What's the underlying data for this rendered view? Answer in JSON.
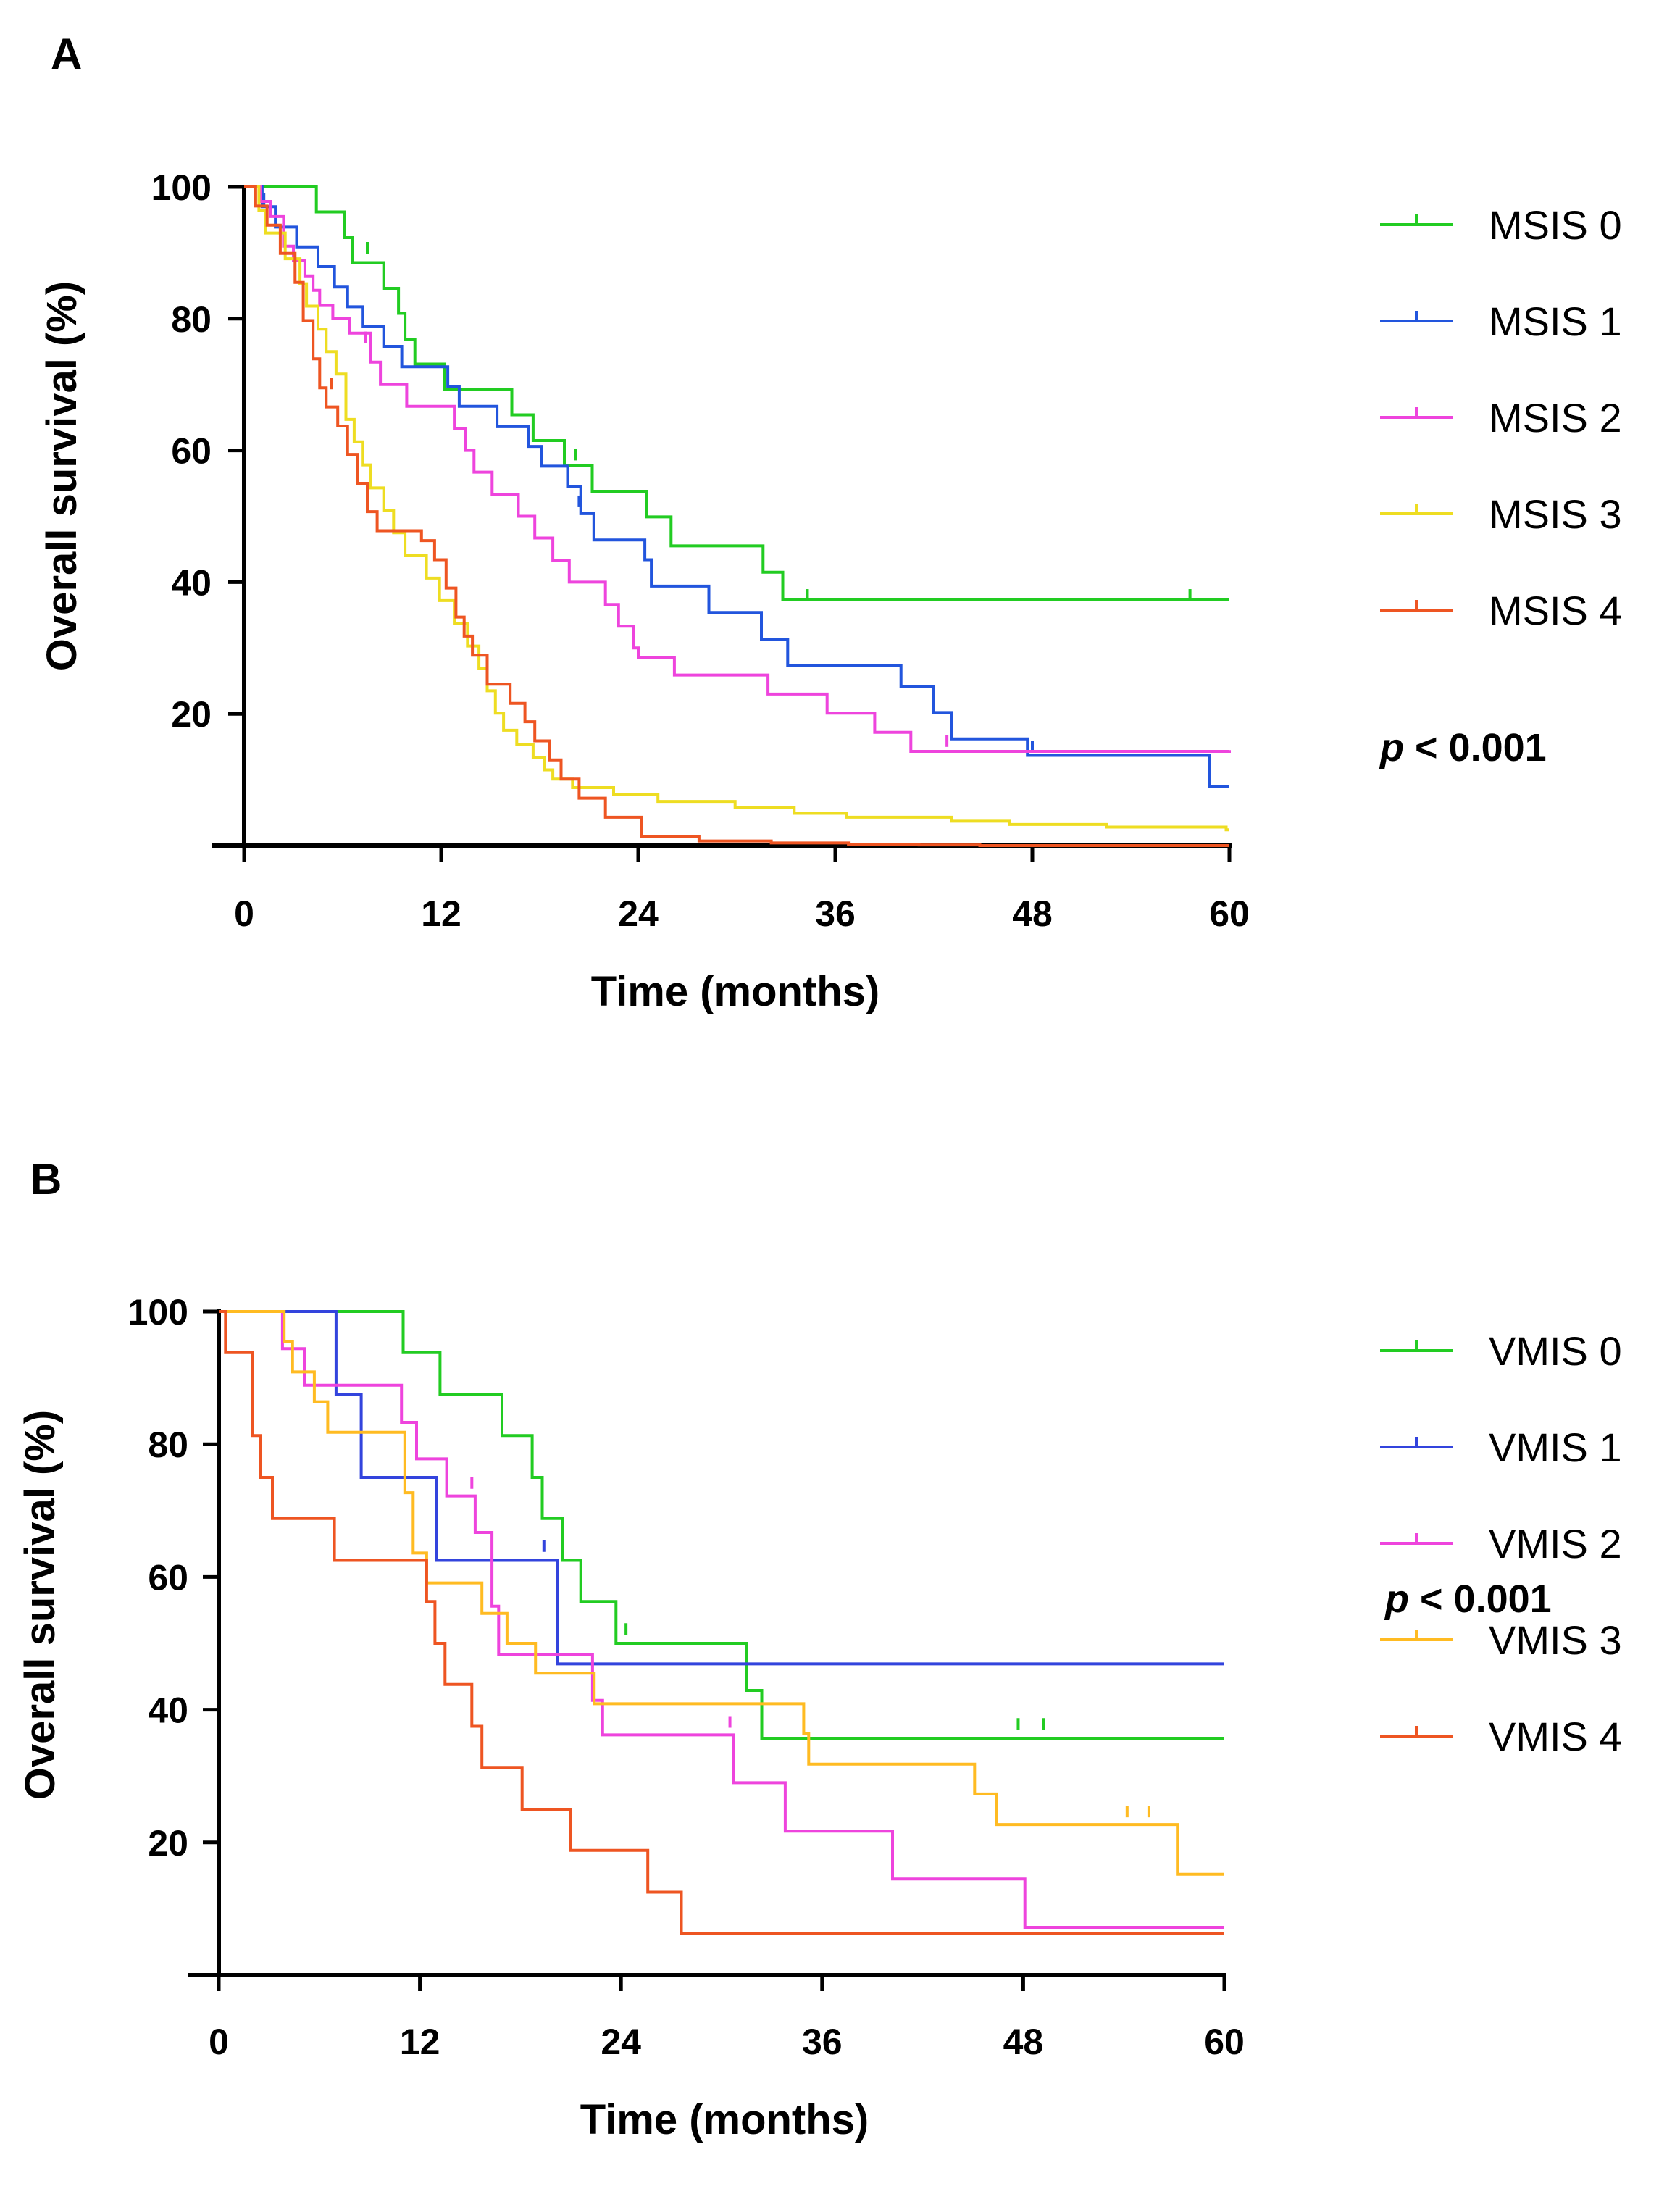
{
  "chart_data": [
    {
      "type": "line",
      "panel": "A",
      "subtype": "kaplan-meier",
      "xlabel": "Time (months)",
      "ylabel": "Overall survival (%)",
      "xlim": [
        0,
        60
      ],
      "ylim": [
        0,
        100
      ],
      "xticks": [
        0,
        12,
        24,
        36,
        48,
        60
      ],
      "yticks": [
        20,
        40,
        60,
        80,
        100
      ],
      "legend_position": "right",
      "annotation": {
        "p_symbol": "p",
        "p_text": " < 0.001"
      },
      "series": [
        {
          "name": "MSIS 0",
          "color": "#22cc22",
          "steps": [
            [
              0,
              100
            ],
            [
              4.4,
              96.2
            ],
            [
              6.1,
              92.3
            ],
            [
              6.6,
              88.5
            ],
            [
              8.5,
              84.6
            ],
            [
              9.4,
              80.8
            ],
            [
              9.8,
              76.9
            ],
            [
              10.4,
              73.1
            ],
            [
              12.2,
              69.2
            ],
            [
              16.3,
              65.4
            ],
            [
              17.6,
              61.5
            ],
            [
              19.5,
              57.7
            ],
            [
              21.2,
              53.8
            ],
            [
              24.5,
              49.9
            ],
            [
              26,
              45.5
            ],
            [
              31.6,
              41.5
            ],
            [
              32.8,
              37.4
            ],
            [
              60,
              37.4
            ]
          ],
          "censored": [
            [
              7.5,
              90.1
            ],
            [
              20.2,
              58.7
            ],
            [
              34.3,
              37.4
            ],
            [
              57.6,
              37.4
            ]
          ]
        },
        {
          "name": "MSIS 1",
          "color": "#2255dd",
          "steps": [
            [
              0,
              100
            ],
            [
              1.1,
              97
            ],
            [
              1.9,
              93.9
            ],
            [
              3.2,
              90.9
            ],
            [
              4.5,
              87.9
            ],
            [
              5.5,
              84.8
            ],
            [
              6.3,
              81.8
            ],
            [
              7.2,
              78.8
            ],
            [
              8.5,
              75.8
            ],
            [
              9.6,
              72.7
            ],
            [
              12.4,
              69.7
            ],
            [
              13.1,
              66.7
            ],
            [
              15.4,
              63.6
            ],
            [
              17.3,
              60.6
            ],
            [
              18.1,
              57.6
            ],
            [
              19.7,
              54.5
            ],
            [
              20.5,
              50.4
            ],
            [
              21.3,
              46.4
            ],
            [
              24.4,
              43.4
            ],
            [
              24.8,
              39.4
            ],
            [
              28.3,
              35.4
            ],
            [
              31.5,
              31.3
            ],
            [
              33.1,
              27.3
            ],
            [
              40,
              24.2
            ],
            [
              42,
              20.2
            ],
            [
              43.1,
              16.2
            ],
            [
              47.7,
              13.7
            ],
            [
              58.8,
              9
            ],
            [
              60,
              9
            ]
          ],
          "censored": [
            [
              1.2,
              97.5
            ],
            [
              20.4,
              51.6
            ],
            [
              48,
              14.3
            ]
          ]
        },
        {
          "name": "MSIS 2",
          "color": "#ee44dd",
          "steps": [
            [
              0,
              100
            ],
            [
              1,
              97.8
            ],
            [
              1.6,
              95.5
            ],
            [
              2.4,
              91
            ],
            [
              3,
              88.8
            ],
            [
              3.7,
              86.5
            ],
            [
              4.2,
              84.3
            ],
            [
              4.6,
              82
            ],
            [
              5.4,
              80
            ],
            [
              6.4,
              77.8
            ],
            [
              7.7,
              73.4
            ],
            [
              8.3,
              70
            ],
            [
              9.9,
              66.7
            ],
            [
              12.8,
              63.3
            ],
            [
              13.5,
              60
            ],
            [
              14,
              56.7
            ],
            [
              15.1,
              53.3
            ],
            [
              16.7,
              50
            ],
            [
              17.7,
              46.7
            ],
            [
              18.8,
              43.3
            ],
            [
              19.8,
              40
            ],
            [
              22,
              36.6
            ],
            [
              22.8,
              33.3
            ],
            [
              23.7,
              30
            ],
            [
              24,
              28.5
            ],
            [
              26.2,
              25.9
            ],
            [
              31.9,
              23
            ],
            [
              35.5,
              20.1
            ],
            [
              38.4,
              17.2
            ],
            [
              40.6,
              14.3
            ],
            [
              60,
              14.5
            ]
          ],
          "censored": [
            [
              7.4,
              76.5
            ],
            [
              42.8,
              15.2
            ]
          ]
        },
        {
          "name": "MSIS 3",
          "color": "#eedd22",
          "steps": [
            [
              0,
              100
            ],
            [
              0.9,
              96.4
            ],
            [
              1.3,
              93
            ],
            [
              2.5,
              89.1
            ],
            [
              3.4,
              85.3
            ],
            [
              3.8,
              81.9
            ],
            [
              4.5,
              78.4
            ],
            [
              5,
              75
            ],
            [
              5.6,
              71.6
            ],
            [
              6.2,
              64.7
            ],
            [
              6.7,
              61.3
            ],
            [
              7.2,
              57.8
            ],
            [
              7.7,
              54.3
            ],
            [
              8.5,
              50.9
            ],
            [
              9.1,
              47.5
            ],
            [
              9.8,
              44
            ],
            [
              11.1,
              40.6
            ],
            [
              11.9,
              37.2
            ],
            [
              12.8,
              33.7
            ],
            [
              13.6,
              30.3
            ],
            [
              14.3,
              26.9
            ],
            [
              14.8,
              23.5
            ],
            [
              15.3,
              20.1
            ],
            [
              15.8,
              17.5
            ],
            [
              16.6,
              15.3
            ],
            [
              17.6,
              13.4
            ],
            [
              18.3,
              11.5
            ],
            [
              18.8,
              10.1
            ],
            [
              20,
              8.8
            ],
            [
              22.5,
              7.7
            ],
            [
              25.2,
              6.7
            ],
            [
              29.9,
              5.8
            ],
            [
              33.5,
              4.9
            ],
            [
              36.7,
              4.3
            ],
            [
              43.1,
              3.7
            ],
            [
              46.6,
              3.2
            ],
            [
              52.5,
              2.8
            ],
            [
              59.8,
              2.4
            ],
            [
              60,
              2.4
            ]
          ],
          "censored": []
        },
        {
          "name": "MSIS 4",
          "color": "#ee5522",
          "steps": [
            [
              0,
              100
            ],
            [
              0.7,
              97.1
            ],
            [
              1.4,
              94.2
            ],
            [
              2.2,
              89.9
            ],
            [
              3.1,
              85.5
            ],
            [
              3.6,
              79.7
            ],
            [
              4.2,
              73.9
            ],
            [
              4.6,
              69.5
            ],
            [
              5,
              66.6
            ],
            [
              5.7,
              63.7
            ],
            [
              6.3,
              59.4
            ],
            [
              6.9,
              55
            ],
            [
              7.5,
              50.7
            ],
            [
              8.1,
              47.8
            ],
            [
              10.8,
              46.3
            ],
            [
              11.6,
              43.4
            ],
            [
              12.3,
              39.1
            ],
            [
              12.9,
              34.7
            ],
            [
              13.4,
              31.8
            ],
            [
              13.9,
              28.9
            ],
            [
              14.8,
              24.5
            ],
            [
              16.2,
              21.6
            ],
            [
              17.1,
              18.8
            ],
            [
              17.7,
              15.9
            ],
            [
              18.6,
              13
            ],
            [
              19.3,
              10.1
            ],
            [
              20.4,
              7.2
            ],
            [
              22,
              4.3
            ],
            [
              24.2,
              1.4
            ],
            [
              27.7,
              0.7
            ],
            [
              32.1,
              0.4
            ],
            [
              36.8,
              0.2
            ],
            [
              41.1,
              0.1
            ],
            [
              44.8,
              0
            ],
            [
              60,
              0
            ]
          ],
          "censored": [
            [
              5.3,
              69.5
            ]
          ]
        }
      ]
    },
    {
      "type": "line",
      "panel": "B",
      "subtype": "kaplan-meier",
      "xlabel": "Time (months)",
      "ylabel": "Overall survival (%)",
      "xlim": [
        0,
        60
      ],
      "ylim": [
        0,
        100
      ],
      "xticks": [
        0,
        12,
        24,
        36,
        48,
        60
      ],
      "yticks": [
        20,
        40,
        60,
        80,
        100
      ],
      "legend_position": "right",
      "annotation": {
        "p_symbol": "p",
        "p_text": " < 0.001"
      },
      "series": [
        {
          "name": "VMIS 0",
          "color": "#22cc22",
          "steps": [
            [
              0,
              100
            ],
            [
              11,
              93.8
            ],
            [
              13.2,
              87.5
            ],
            [
              16.9,
              81.3
            ],
            [
              18.7,
              75
            ],
            [
              19.3,
              68.8
            ],
            [
              20.5,
              62.5
            ],
            [
              21.6,
              56.3
            ],
            [
              23.7,
              50
            ],
            [
              31.5,
              42.9
            ],
            [
              32.4,
              35.7
            ],
            [
              60,
              35.7
            ]
          ],
          "censored": [
            [
              24.3,
              51.5
            ],
            [
              47.7,
              37.2
            ],
            [
              49.2,
              37.2
            ]
          ]
        },
        {
          "name": "VMIS 1",
          "color": "#3344dd",
          "steps": [
            [
              0,
              100
            ],
            [
              7,
              87.5
            ],
            [
              8.5,
              75
            ],
            [
              13,
              62.5
            ],
            [
              20.2,
              46.9
            ],
            [
              60,
              46.9
            ]
          ],
          "censored": [
            [
              19.4,
              64
            ]
          ]
        },
        {
          "name": "VMIS 2",
          "color": "#ee44dd",
          "steps": [
            [
              0,
              100
            ],
            [
              3.8,
              94.4
            ],
            [
              5.1,
              88.9
            ],
            [
              10.9,
              83.3
            ],
            [
              11.8,
              77.8
            ],
            [
              13.6,
              72.2
            ],
            [
              15.3,
              66.7
            ],
            [
              16.3,
              55.6
            ],
            [
              16.7,
              48.3
            ],
            [
              22.3,
              41.4
            ],
            [
              22.9,
              36.2
            ],
            [
              30.7,
              29
            ],
            [
              33.8,
              21.7
            ],
            [
              40.2,
              14.5
            ],
            [
              48.1,
              7.2
            ],
            [
              60,
              7.2
            ]
          ],
          "censored": [
            [
              15.1,
              73.5
            ],
            [
              30.5,
              37.5
            ]
          ]
        },
        {
          "name": "VMIS 3",
          "color": "#ffbb22",
          "steps": [
            [
              0,
              100
            ],
            [
              3.9,
              95.5
            ],
            [
              4.4,
              90.9
            ],
            [
              5.7,
              86.4
            ],
            [
              6.5,
              81.8
            ],
            [
              11.1,
              72.7
            ],
            [
              11.6,
              63.6
            ],
            [
              12.4,
              59.1
            ],
            [
              15.7,
              54.5
            ],
            [
              17.2,
              50
            ],
            [
              18.9,
              45.5
            ],
            [
              22.4,
              40.9
            ],
            [
              30.4,
              40.9
            ],
            [
              34.9,
              36.4
            ],
            [
              35.2,
              31.8
            ],
            [
              45.1,
              27.3
            ],
            [
              46.4,
              22.7
            ],
            [
              57.2,
              15.2
            ],
            [
              60,
              15.2
            ]
          ],
          "censored": [
            [
              54.2,
              24
            ],
            [
              55.5,
              24
            ]
          ]
        },
        {
          "name": "VMIS 4",
          "color": "#ee5522",
          "steps": [
            [
              0,
              100
            ],
            [
              0.4,
              93.8
            ],
            [
              2,
              81.3
            ],
            [
              2.5,
              75
            ],
            [
              3.2,
              68.8
            ],
            [
              6.9,
              62.5
            ],
            [
              12.4,
              56.3
            ],
            [
              12.9,
              50
            ],
            [
              13.5,
              43.8
            ],
            [
              15.1,
              37.5
            ],
            [
              15.7,
              31.3
            ],
            [
              18.1,
              25
            ],
            [
              21,
              18.8
            ],
            [
              25.6,
              12.5
            ],
            [
              27.6,
              6.3
            ],
            [
              60,
              6.3
            ]
          ],
          "censored": []
        }
      ]
    }
  ]
}
